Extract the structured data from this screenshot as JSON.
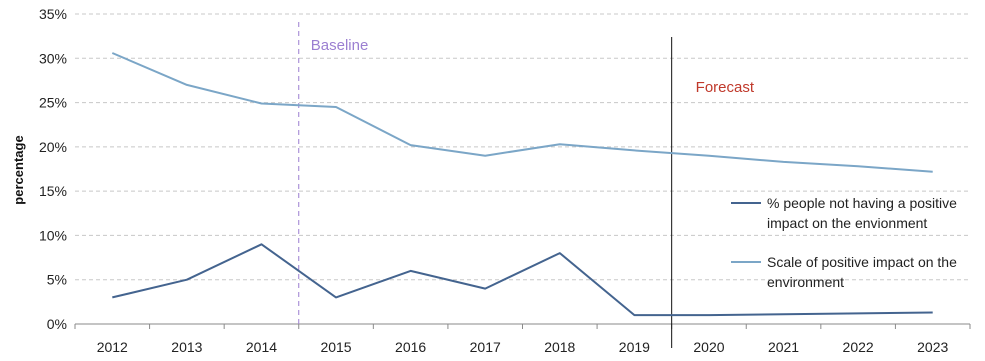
{
  "chart_data": {
    "type": "line",
    "title": "",
    "xlabel": "",
    "ylabel": "percentage",
    "categories": [
      "2012",
      "2013",
      "2014",
      "2015",
      "2016",
      "2017",
      "2018",
      "2019",
      "2020",
      "2021",
      "2022",
      "2023"
    ],
    "ylim": [
      0,
      35
    ],
    "yticks": [
      0,
      5,
      10,
      15,
      20,
      25,
      30,
      35
    ],
    "ytick_labels": [
      "0%",
      "5%",
      "10%",
      "15%",
      "20%",
      "25%",
      "30%",
      "35%"
    ],
    "grid": "horizontal dashed",
    "legend_position": "right",
    "series": [
      {
        "name": "% people not having a positive impact on the envionment",
        "legend_lines": [
          "% people not having a positive",
          "impact on the envionment"
        ],
        "color": "#44648f",
        "values": [
          3.0,
          5.0,
          9.0,
          3.0,
          6.0,
          4.0,
          8.0,
          1.0,
          1.0,
          1.1,
          1.2,
          1.3
        ]
      },
      {
        "name": "Scale of positive impact on the environment",
        "legend_lines": [
          "Scale of positive impact on the",
          "environment"
        ],
        "color": "#7ba6c7",
        "values": [
          30.6,
          27.0,
          24.9,
          24.5,
          20.2,
          19.0,
          20.3,
          19.6,
          19.0,
          18.3,
          17.8,
          17.2
        ]
      }
    ],
    "annotations": [
      {
        "text": "Baseline",
        "color": "#9b7fd1",
        "line_style": "dashed",
        "position": "between 2014 and 2015"
      },
      {
        "text": "Forecast",
        "color": "#c0392b",
        "line_style": "solid",
        "position": "between 2019 and 2020"
      }
    ]
  }
}
